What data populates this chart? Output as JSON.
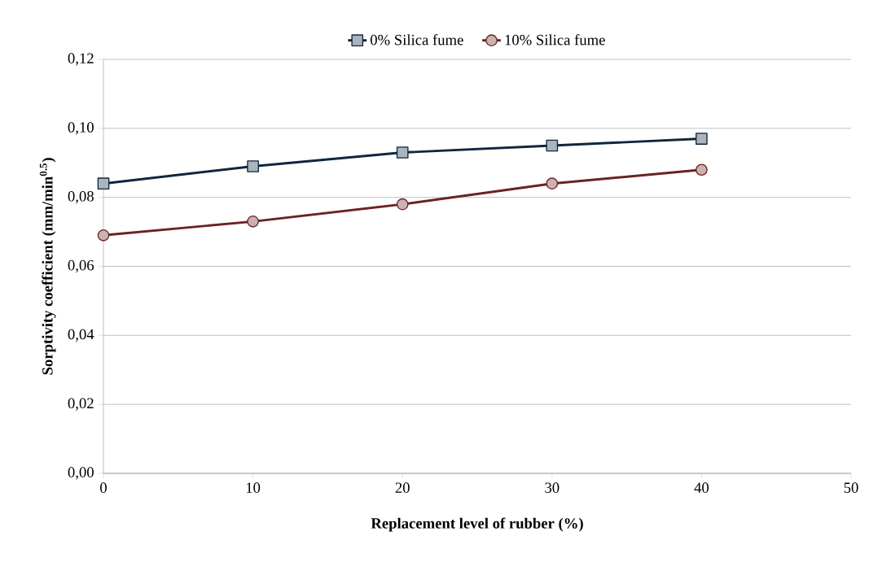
{
  "chart_data": {
    "type": "line",
    "xlabel": "Replacement level of rubber (%)",
    "ylabel": "Sorptivity coefficient (mm/min$^{0.5}$)",
    "x": [
      0,
      10,
      20,
      30,
      40
    ],
    "series": [
      {
        "name": "0% Silica fume",
        "color": "#10263f",
        "marker": "square",
        "values": [
          0.084,
          0.089,
          0.093,
          0.095,
          0.097
        ]
      },
      {
        "name": "10% Silica fume",
        "color": "#6b2222",
        "marker": "circle",
        "values": [
          0.069,
          0.073,
          0.078,
          0.084,
          0.088
        ]
      }
    ],
    "xlim": [
      0,
      50
    ],
    "xticks": [
      0,
      10,
      20,
      30,
      40,
      50
    ],
    "ylim": [
      0,
      0.12
    ],
    "yticks": [
      {
        "value": 0,
        "label": "0,00"
      },
      {
        "value": 0.02,
        "label": "0,02"
      },
      {
        "value": 0.04,
        "label": "0,04"
      },
      {
        "value": 0.06,
        "label": "0,06"
      },
      {
        "value": 0.08,
        "label": "0,08"
      },
      {
        "value": 0.1,
        "label": "0,10"
      },
      {
        "value": 0.12,
        "label": "0,12"
      }
    ],
    "grid": "y",
    "legend": "top",
    "line_style": "solid"
  }
}
